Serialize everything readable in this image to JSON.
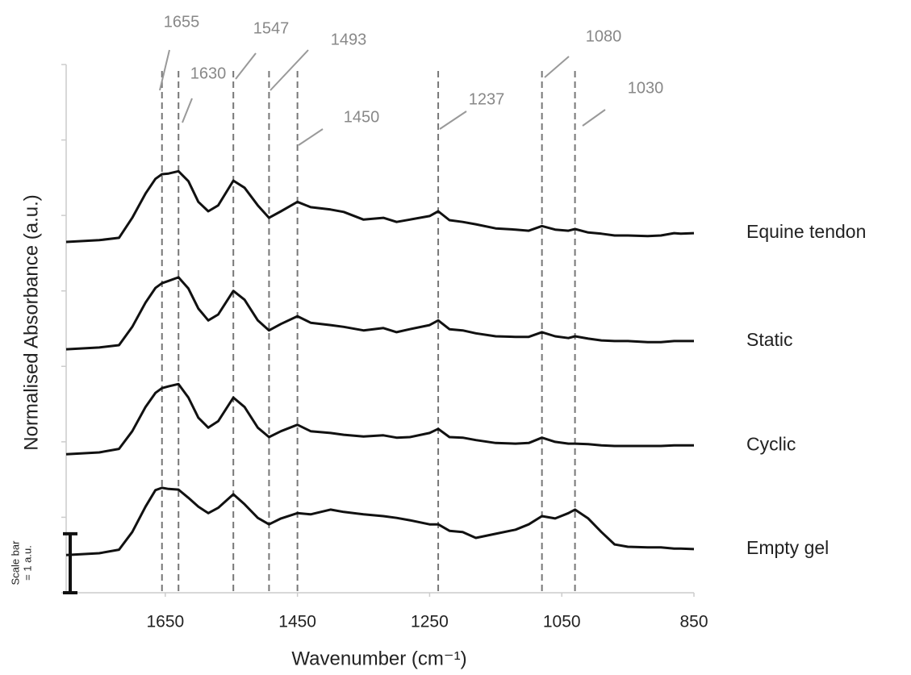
{
  "chart_data": {
    "type": "line",
    "x_label": "Wavenumber (cm⁻¹)",
    "y_label": "Normalised Absorbance (a.u.)",
    "x": [
      1800,
      1750,
      1720,
      1700,
      1680,
      1665,
      1655,
      1645,
      1630,
      1615,
      1600,
      1585,
      1570,
      1547,
      1530,
      1510,
      1493,
      1475,
      1450,
      1430,
      1400,
      1380,
      1350,
      1320,
      1300,
      1280,
      1250,
      1237,
      1220,
      1200,
      1180,
      1150,
      1120,
      1100,
      1080,
      1060,
      1040,
      1030,
      1010,
      990,
      970,
      950,
      920,
      900,
      880,
      870,
      850
    ],
    "xlim": [
      1800,
      850
    ],
    "xticks": [
      1650,
      1450,
      1250,
      1050,
      850
    ],
    "ylim": [
      0,
      8.96
    ],
    "yticks": [
      0,
      1.28,
      2.56,
      3.84,
      5.12,
      6.4,
      7.68,
      8.96
    ],
    "series": [
      {
        "name": "Equine tendon",
        "color": "#111111",
        "values": [
          5.95,
          5.98,
          6.02,
          6.36,
          6.77,
          7.02,
          7.1,
          7.11,
          7.15,
          6.98,
          6.63,
          6.47,
          6.57,
          6.99,
          6.87,
          6.57,
          6.36,
          6.47,
          6.63,
          6.54,
          6.5,
          6.46,
          6.33,
          6.36,
          6.29,
          6.33,
          6.39,
          6.47,
          6.32,
          6.29,
          6.25,
          6.18,
          6.16,
          6.14,
          6.22,
          6.16,
          6.14,
          6.17,
          6.11,
          6.09,
          6.06,
          6.06,
          6.05,
          6.06,
          6.1,
          6.09,
          6.1
        ]
      },
      {
        "name": "Static",
        "color": "#111111",
        "values": [
          4.13,
          4.16,
          4.2,
          4.51,
          4.92,
          5.17,
          5.25,
          5.29,
          5.35,
          5.16,
          4.82,
          4.62,
          4.72,
          5.12,
          4.97,
          4.62,
          4.45,
          4.56,
          4.69,
          4.58,
          4.54,
          4.51,
          4.45,
          4.49,
          4.42,
          4.47,
          4.54,
          4.62,
          4.47,
          4.45,
          4.4,
          4.35,
          4.34,
          4.34,
          4.42,
          4.35,
          4.32,
          4.35,
          4.31,
          4.28,
          4.27,
          4.27,
          4.25,
          4.25,
          4.27,
          4.27,
          4.27
        ]
      },
      {
        "name": "Cyclic",
        "color": "#111111",
        "values": [
          2.35,
          2.38,
          2.44,
          2.74,
          3.15,
          3.39,
          3.47,
          3.5,
          3.54,
          3.31,
          2.97,
          2.8,
          2.91,
          3.31,
          3.15,
          2.8,
          2.64,
          2.74,
          2.85,
          2.74,
          2.71,
          2.68,
          2.65,
          2.67,
          2.63,
          2.64,
          2.71,
          2.78,
          2.64,
          2.63,
          2.59,
          2.54,
          2.53,
          2.54,
          2.63,
          2.56,
          2.53,
          2.53,
          2.52,
          2.5,
          2.49,
          2.49,
          2.49,
          2.49,
          2.5,
          2.5,
          2.5
        ]
      },
      {
        "name": "Empty gel",
        "color": "#111111",
        "values": [
          0.64,
          0.67,
          0.73,
          1.03,
          1.46,
          1.74,
          1.78,
          1.76,
          1.75,
          1.61,
          1.46,
          1.35,
          1.44,
          1.67,
          1.5,
          1.27,
          1.16,
          1.26,
          1.35,
          1.33,
          1.41,
          1.37,
          1.33,
          1.3,
          1.27,
          1.23,
          1.16,
          1.16,
          1.05,
          1.03,
          0.93,
          1.0,
          1.07,
          1.16,
          1.3,
          1.26,
          1.35,
          1.41,
          1.26,
          1.03,
          0.82,
          0.78,
          0.77,
          0.77,
          0.75,
          0.75,
          0.74
        ]
      }
    ],
    "peaks": [
      1655,
      1630,
      1547,
      1493,
      1450,
      1237,
      1080,
      1030
    ],
    "scale_bar": {
      "lines": [
        "Scale bar",
        "= 1 a.u."
      ],
      "value": 1
    }
  }
}
